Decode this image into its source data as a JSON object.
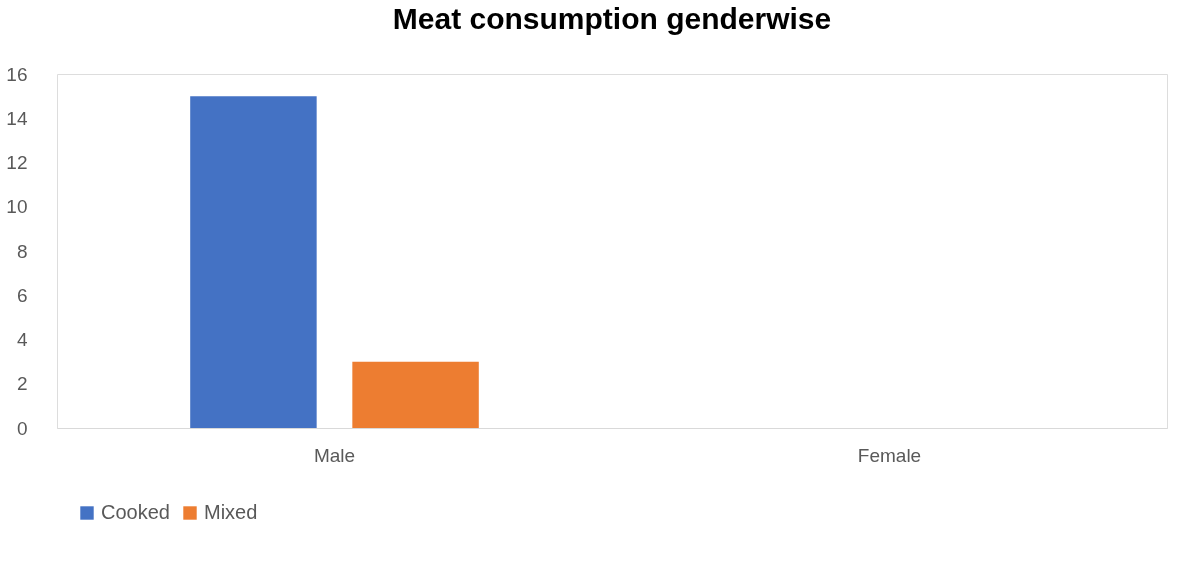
{
  "chart_data": {
    "type": "bar",
    "title": "Meat consumption genderwise",
    "categories": [
      "Male",
      "Female"
    ],
    "series": [
      {
        "name": "Cooked",
        "color": "#4472c4",
        "values": [
          15,
          0
        ]
      },
      {
        "name": "Mixed",
        "color": "#ed7d31",
        "values": [
          3,
          0
        ]
      }
    ],
    "ylim": [
      0,
      16
    ],
    "yticks": [
      0,
      2,
      4,
      6,
      8,
      10,
      12,
      14,
      16
    ],
    "grid": false,
    "legend": "bottom"
  }
}
